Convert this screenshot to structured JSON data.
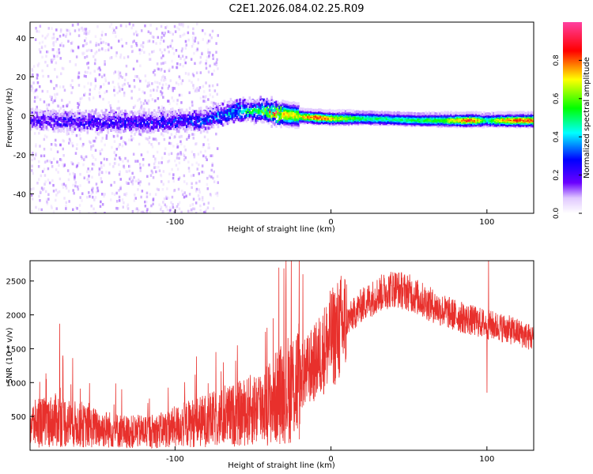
{
  "title": "C2E1.2026.084.02.25.R09",
  "colors": {
    "snr_line": "#e8302c",
    "frame": "#000000",
    "background": "#ffffff"
  },
  "chart_data": [
    {
      "type": "heatmap",
      "name": "spectrogram",
      "xlabel": "Height of straight line (km)",
      "ylabel": "Frequency (Hz)",
      "xlim": [
        -193,
        130
      ],
      "ylim": [
        -50,
        48
      ],
      "xticks": [
        -100,
        0,
        100
      ],
      "xtick_labels": [
        "-100",
        "0",
        "100"
      ],
      "yticks": [
        40,
        20,
        0,
        -20,
        -40
      ],
      "ytick_labels": [
        "40",
        "20",
        "0",
        "-20",
        "-40"
      ],
      "ridge_frequency_points": [
        {
          "x": -193,
          "y": -2
        },
        {
          "x": -150,
          "y": -3
        },
        {
          "x": -110,
          "y": -3
        },
        {
          "x": -80,
          "y": -2
        },
        {
          "x": -60,
          "y": 3
        },
        {
          "x": -45,
          "y": 3
        },
        {
          "x": -30,
          "y": 1
        },
        {
          "x": -20,
          "y": 0
        },
        {
          "x": 0,
          "y": -1
        },
        {
          "x": 20,
          "y": -1
        },
        {
          "x": 60,
          "y": -2
        },
        {
          "x": 100,
          "y": -2
        },
        {
          "x": 130,
          "y": -2
        }
      ],
      "ridge_amplitude_points": [
        {
          "x": -193,
          "a": 0.2
        },
        {
          "x": -120,
          "a": 0.25
        },
        {
          "x": -80,
          "a": 0.3
        },
        {
          "x": -60,
          "a": 0.4
        },
        {
          "x": -45,
          "a": 0.5
        },
        {
          "x": -35,
          "a": 0.85
        },
        {
          "x": -20,
          "a": 0.7
        },
        {
          "x": -10,
          "a": 0.9
        },
        {
          "x": 0,
          "a": 0.75
        },
        {
          "x": 20,
          "a": 0.55
        },
        {
          "x": 40,
          "a": 0.5
        },
        {
          "x": 70,
          "a": 0.6
        },
        {
          "x": 90,
          "a": 0.92
        },
        {
          "x": 100,
          "a": 0.5
        },
        {
          "x": 110,
          "a": 0.8
        },
        {
          "x": 130,
          "a": 0.9
        }
      ]
    },
    {
      "type": "colorbar",
      "name": "colorbar",
      "label": "Normalized spectral amplitude",
      "range": [
        0,
        1
      ],
      "ticks": [
        0.0,
        0.2,
        0.4,
        0.6,
        0.8
      ],
      "tick_labels": [
        "0.0",
        "0.2",
        "0.4",
        "0.6",
        "0.8"
      ]
    },
    {
      "type": "line",
      "name": "snr",
      "xlabel": "Height of straight line (km)",
      "ylabel": "SNR (10 * v/v)",
      "xlim": [
        -193,
        130
      ],
      "ylim": [
        0,
        2800
      ],
      "xticks": [
        -100,
        0,
        100
      ],
      "xtick_labels": [
        "-100",
        "0",
        "100"
      ],
      "yticks": [
        500,
        1000,
        1500,
        2000,
        2500
      ],
      "ytick_labels": [
        "500",
        "1000",
        "1500",
        "2000",
        "2500"
      ],
      "trend": [
        {
          "x": -193,
          "y": 380
        },
        {
          "x": -175,
          "y": 450
        },
        {
          "x": -160,
          "y": 360
        },
        {
          "x": -130,
          "y": 270
        },
        {
          "x": -110,
          "y": 290
        },
        {
          "x": -90,
          "y": 400
        },
        {
          "x": -70,
          "y": 480
        },
        {
          "x": -55,
          "y": 560
        },
        {
          "x": -40,
          "y": 700
        },
        {
          "x": -25,
          "y": 950
        },
        {
          "x": -10,
          "y": 1300
        },
        {
          "x": 0,
          "y": 1650
        },
        {
          "x": 10,
          "y": 1900
        },
        {
          "x": 20,
          "y": 2150
        },
        {
          "x": 30,
          "y": 2300
        },
        {
          "x": 40,
          "y": 2400
        },
        {
          "x": 50,
          "y": 2330
        },
        {
          "x": 60,
          "y": 2200
        },
        {
          "x": 70,
          "y": 2080
        },
        {
          "x": 80,
          "y": 1990
        },
        {
          "x": 90,
          "y": 1920
        },
        {
          "x": 100,
          "y": 1860
        },
        {
          "x": 110,
          "y": 1810
        },
        {
          "x": 120,
          "y": 1740
        },
        {
          "x": 130,
          "y": 1650
        }
      ],
      "spikes": [
        {
          "x": -174,
          "y": 1870
        },
        {
          "x": -172,
          "y": 1400
        },
        {
          "x": -60,
          "y": 1550
        },
        {
          "x": -42,
          "y": 1750
        },
        {
          "x": -37,
          "y": 1950
        },
        {
          "x": -29,
          "y": 2400
        },
        {
          "x": -18,
          "y": 2600
        },
        {
          "x": 10,
          "y": 2450
        },
        {
          "x": 100,
          "y": 850
        },
        {
          "x": 101,
          "y": 2800
        }
      ]
    }
  ]
}
